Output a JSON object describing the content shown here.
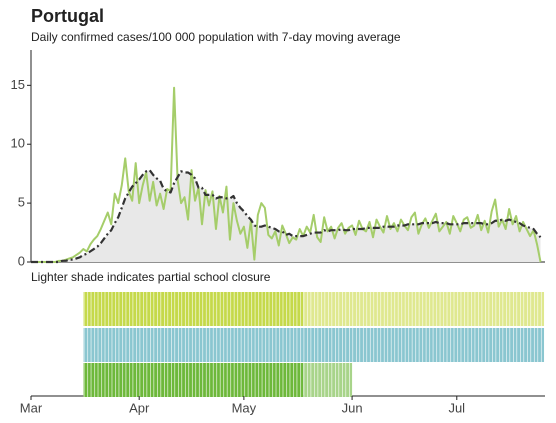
{
  "chart_data": [
    {
      "type": "line",
      "title": "Portugal",
      "subtitle": "Daily confirmed cases/100 000 population with 7-day moving average",
      "x": [
        0,
        1,
        2,
        3,
        4,
        5,
        6,
        7,
        8,
        9,
        10,
        11,
        12,
        13,
        14,
        15,
        16,
        17,
        18,
        19,
        20,
        21,
        22,
        23,
        24,
        25,
        26,
        27,
        28,
        29,
        30,
        31,
        32,
        33,
        34,
        35,
        36,
        37,
        38,
        39,
        40,
        41,
        42,
        43,
        44,
        45,
        46,
        47,
        48,
        49,
        50,
        51,
        52,
        53,
        54,
        55,
        56,
        57,
        58,
        59,
        60,
        61,
        62,
        63,
        64,
        65,
        66,
        67,
        68,
        69,
        70,
        71,
        72,
        73,
        74,
        75,
        76,
        77,
        78,
        79,
        80,
        81,
        82,
        83,
        84,
        85,
        86,
        87,
        88,
        89,
        90,
        91,
        92,
        93,
        94,
        95,
        96,
        97,
        98,
        99,
        100,
        101,
        102,
        103,
        104,
        105,
        106,
        107,
        108,
        109,
        110,
        111,
        112,
        113,
        114,
        115,
        116,
        117,
        118,
        119,
        120,
        121,
        122,
        123,
        124,
        125,
        126,
        127,
        128,
        129,
        130,
        131,
        132,
        133,
        134,
        135,
        136,
        137,
        138,
        139,
        140,
        141,
        142,
        143,
        144,
        145,
        146
      ],
      "xlim": [
        0,
        150
      ],
      "ylim": [
        0,
        18
      ],
      "yticks": [
        0,
        5,
        10,
        15
      ],
      "series": [
        {
          "color": "#a5cd6a",
          "style": "solid",
          "values": [
            0,
            0,
            0,
            0,
            0,
            0,
            0,
            0,
            0.1,
            0.1,
            0.2,
            0.3,
            0.4,
            0.6,
            0.8,
            1.1,
            0.9,
            1.5,
            1.9,
            2.2,
            2.8,
            3.5,
            4.2,
            3.2,
            5.8,
            5.0,
            6.5,
            8.8,
            6.0,
            5.2,
            8.4,
            5.0,
            6.5,
            7.6,
            5.2,
            6.8,
            4.8,
            5.8,
            4.5,
            6.2,
            6.0,
            14.8,
            7.0,
            5.0,
            5.5,
            3.6,
            7.8,
            5.2,
            6.3,
            3.2,
            6.1,
            4.8,
            6.0,
            2.8,
            5.6,
            4.2,
            6.4,
            1.9,
            5.0,
            3.5,
            2.4,
            3.0,
            1.2,
            3.5,
            0.2,
            4.0,
            5.0,
            4.6,
            2.3,
            2.0,
            2.6,
            1.4,
            3.1,
            2.4,
            1.6,
            2.1,
            1.9,
            2.8,
            2.2,
            3.0,
            2.5,
            4.0,
            2.1,
            1.7,
            3.8,
            2.6,
            3.0,
            2.0,
            2.9,
            3.3,
            2.4,
            2.9,
            3.1,
            2.3,
            3.5,
            2.8,
            2.6,
            3.4,
            2.1,
            3.6,
            3.0,
            2.5,
            3.9,
            2.8,
            3.3,
            2.6,
            3.6,
            3.1,
            2.7,
            3.8,
            4.2,
            2.4,
            3.2,
            3.7,
            2.9,
            3.5,
            4.1,
            2.6,
            3.0,
            3.4,
            2.4,
            3.9,
            3.3,
            2.6,
            3.6,
            3.8,
            2.9,
            3.1,
            4.0,
            2.7,
            3.5,
            2.5,
            4.3,
            5.3,
            3.0,
            3.6,
            2.8,
            4.5,
            3.2,
            3.9,
            2.6,
            3.4,
            2.8,
            2.2,
            2.7,
            1.5,
            0.0
          ]
        },
        {
          "color": "#333333",
          "style": "dashdot",
          "fill": "#e8e8e8",
          "values": [
            0,
            0,
            0,
            0,
            0,
            0,
            0,
            0,
            0,
            0.1,
            0.1,
            0.2,
            0.2,
            0.3,
            0.4,
            0.6,
            0.7,
            0.9,
            1.1,
            1.3,
            1.6,
            2.0,
            2.4,
            2.7,
            3.3,
            3.8,
            4.6,
            5.4,
            5.9,
            6.4,
            6.7,
            7.0,
            7.4,
            7.7,
            7.8,
            7.4,
            7.1,
            6.9,
            6.2,
            6.0,
            5.9,
            6.7,
            7.2,
            7.7,
            7.6,
            7.6,
            7.4,
            7.1,
            6.3,
            6.3,
            5.7,
            5.7,
            5.7,
            5.4,
            5.5,
            5.5,
            5.4,
            5.4,
            5.6,
            5.0,
            4.6,
            4.3,
            3.9,
            3.6,
            3.1,
            3.0,
            3.0,
            3.1,
            3.0,
            2.9,
            2.8,
            2.6,
            2.6,
            2.3,
            2.4,
            2.2,
            2.2,
            2.2,
            2.2,
            2.3,
            2.4,
            2.5,
            2.5,
            2.5,
            2.7,
            2.6,
            2.7,
            2.7,
            2.7,
            2.8,
            2.7,
            2.7,
            2.8,
            2.8,
            2.8,
            2.8,
            2.9,
            2.9,
            2.9,
            2.9,
            2.9,
            3.0,
            3.0,
            3.0,
            3.0,
            3.1,
            3.1,
            3.1,
            3.2,
            3.2,
            3.2,
            3.2,
            3.3,
            3.3,
            3.3,
            3.3,
            3.4,
            3.3,
            3.3,
            3.3,
            3.2,
            3.2,
            3.2,
            3.2,
            3.3,
            3.3,
            3.3,
            3.3,
            3.3,
            3.3,
            3.2,
            3.2,
            3.3,
            3.5,
            3.5,
            3.6,
            3.5,
            3.6,
            3.5,
            3.4,
            3.3,
            3.1,
            3.0,
            2.9,
            2.8,
            2.4,
            2.1
          ]
        }
      ]
    },
    {
      "type": "timeline",
      "annotation": "Lighter shade indicates partial school closure",
      "xlim": [
        0,
        150
      ],
      "xticks": [
        {
          "value": 0,
          "label": "Mar"
        },
        {
          "value": 31,
          "label": "Apr"
        },
        {
          "value": 61,
          "label": "May"
        },
        {
          "value": 92,
          "label": "Jun"
        },
        {
          "value": 122,
          "label": "Jul"
        }
      ],
      "rows": [
        {
          "color": "#c5d94a",
          "partial_color": "#dfe88f",
          "segments": [
            {
              "start": 15,
              "end": 78,
              "partial": false
            },
            {
              "start": 78,
              "end": 147,
              "partial": true
            }
          ]
        },
        {
          "color": "#8ac6d0",
          "partial_color": "#c2e2e7",
          "segments": [
            {
              "start": 15,
              "end": 147,
              "partial": false
            }
          ]
        },
        {
          "color": "#6db83a",
          "partial_color": "#a8d48a",
          "segments": [
            {
              "start": 15,
              "end": 78,
              "partial": false
            },
            {
              "start": 78,
              "end": 92,
              "partial": true
            }
          ]
        }
      ]
    }
  ]
}
